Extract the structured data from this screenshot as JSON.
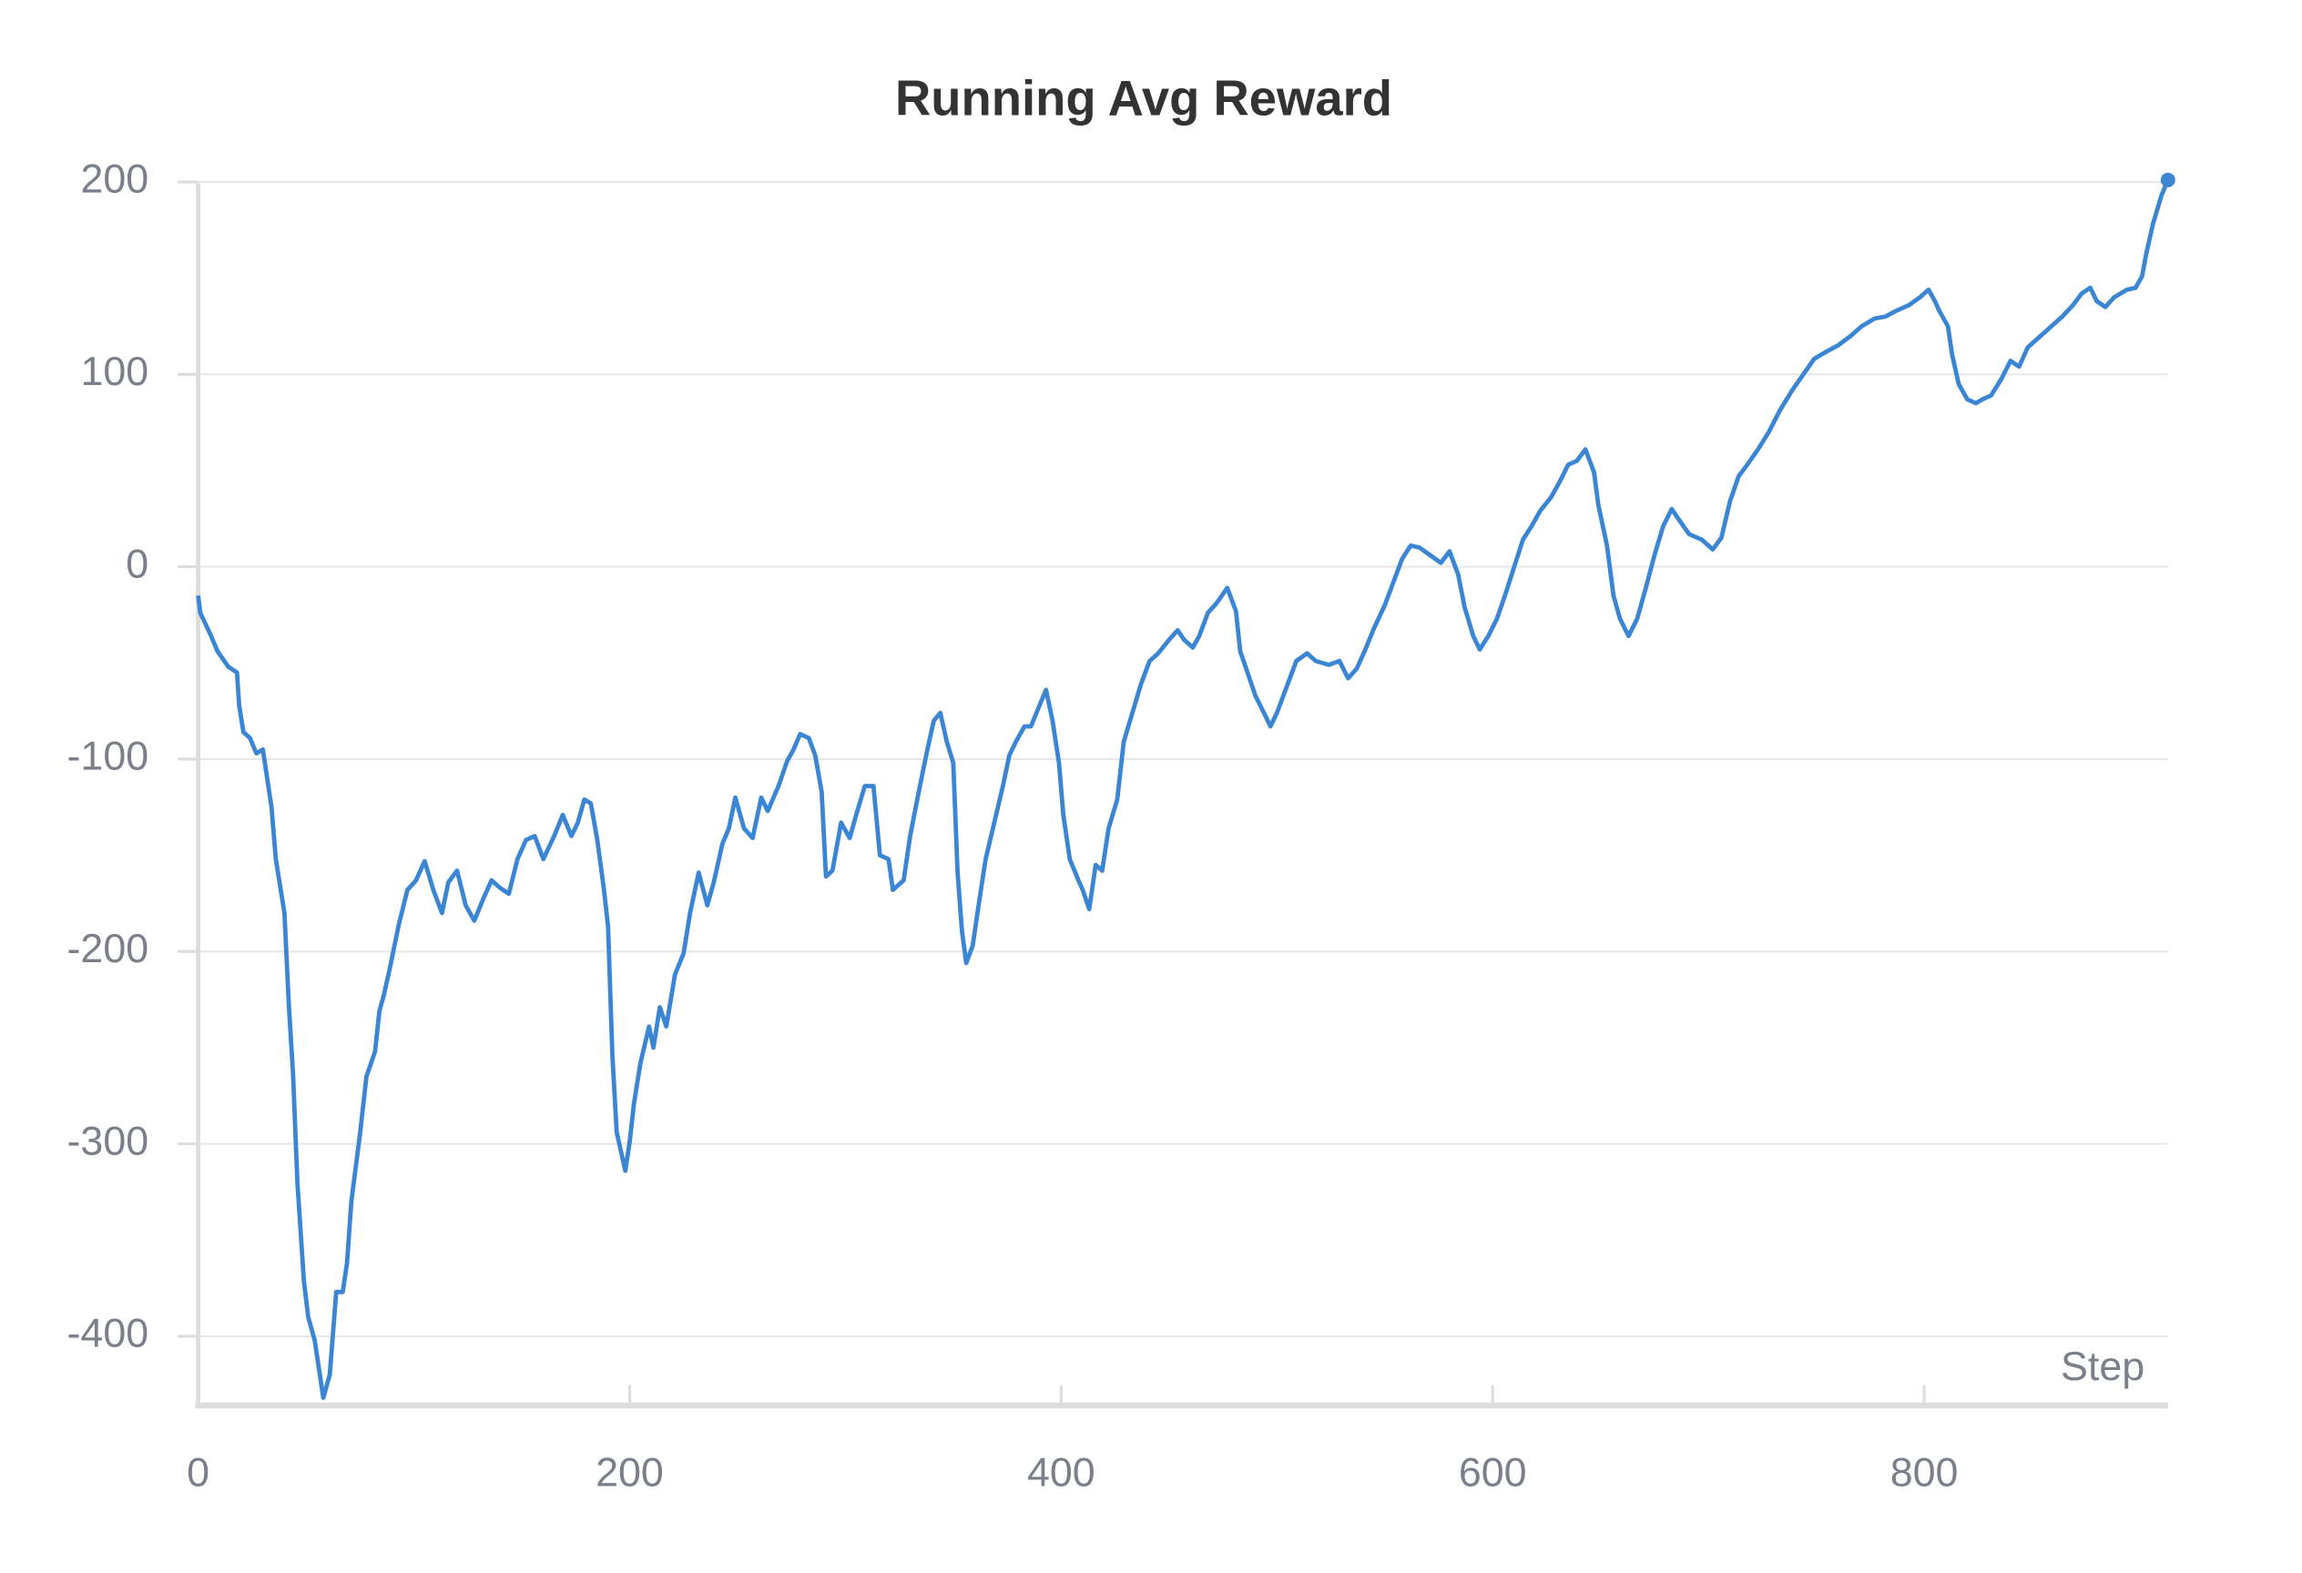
{
  "chart_data": {
    "type": "line",
    "title": "Running Avg Reward",
    "x_label": "Step",
    "x": [
      0,
      1,
      6,
      9,
      14,
      18,
      19,
      21,
      24,
      27,
      30,
      32,
      34,
      36,
      40,
      42,
      44,
      46,
      49,
      51,
      54,
      58,
      61,
      64,
      67,
      69,
      71,
      75,
      78,
      82,
      84,
      86,
      89,
      93,
      97,
      101,
      105,
      109,
      113,
      116,
      120,
      124,
      128,
      132,
      136,
      140,
      144,
      148,
      152,
      156,
      160,
      165,
      169,
      173,
      176,
      179,
      182,
      185,
      188,
      190,
      192,
      194,
      198,
      200,
      202,
      205,
      209,
      211,
      214,
      217,
      221,
      225,
      228,
      232,
      236,
      239,
      243,
      246,
      249,
      253,
      257,
      261,
      264,
      269,
      273,
      276,
      279,
      283,
      286,
      289,
      291,
      294,
      298,
      302,
      305,
      309,
      313,
      316,
      320,
      322,
      327,
      330,
      334,
      338,
      341,
      344,
      347,
      350,
      352,
      354,
      356,
      359,
      362,
      365,
      369,
      373,
      376,
      379,
      383,
      386,
      390,
      393,
      396,
      399,
      401,
      404,
      408,
      410,
      413,
      416,
      419,
      422,
      426,
      429,
      433,
      437,
      441,
      445,
      450,
      454,
      457,
      461,
      464,
      468,
      472,
      477,
      481,
      483,
      487,
      490,
      494,
      497,
      500,
      505,
      509,
      514,
      518,
      524,
      529,
      533,
      537,
      541,
      545,
      550,
      554,
      558,
      562,
      566,
      571,
      576,
      580,
      584,
      587,
      591,
      594,
      598,
      602,
      606,
      610,
      614,
      618,
      622,
      627,
      631,
      635,
      639,
      643,
      647,
      649,
      653,
      656,
      659,
      663,
      667,
      671,
      675,
      679,
      683,
      686,
      691,
      697,
      702,
      706,
      710,
      714,
      718,
      723,
      728,
      733,
      739,
      744,
      749,
      755,
      760,
      766,
      771,
      777,
      782,
      787,
      793,
      798,
      802,
      805,
      807,
      811,
      813,
      816,
      820,
      824,
      827,
      831,
      836,
      840,
      844,
      848,
      853,
      859,
      864,
      869,
      873,
      877,
      880,
      884,
      888,
      894,
      898,
      901,
      903,
      906,
      910,
      913
    ],
    "series": [
      {
        "name": "Running Avg Reward",
        "color": "#3a86d4",
        "values": [
          -15,
          -24,
          -36,
          -44,
          -52,
          -55,
          -72,
          -86,
          -89,
          -97,
          -95,
          -110,
          -125,
          -152,
          -180,
          -227,
          -264,
          -320,
          -371,
          -390,
          -402,
          -432,
          -420,
          -377,
          -377,
          -362,
          -330,
          -295,
          -265,
          -252,
          -231,
          -223,
          -208,
          -186,
          -168,
          -163,
          -153,
          -168,
          -180,
          -164,
          -158,
          -176,
          -184,
          -173,
          -163,
          -167,
          -170,
          -152,
          -142,
          -140,
          -152,
          -140,
          -129,
          -140,
          -133,
          -121,
          -123,
          -142,
          -167,
          -187,
          -254,
          -294,
          -314,
          -299,
          -279,
          -258,
          -239,
          -250,
          -229,
          -239,
          -212,
          -201,
          -180,
          -159,
          -176,
          -164,
          -144,
          -136,
          -120,
          -136,
          -141,
          -120,
          -127,
          -114,
          -101,
          -95,
          -87,
          -89,
          -98,
          -117,
          -161,
          -158,
          -133,
          -141,
          -129,
          -114,
          -114,
          -150,
          -152,
          -168,
          -163,
          -140,
          -117,
          -95,
          -80,
          -76,
          -91,
          -102,
          -159,
          -189,
          -206,
          -197,
          -174,
          -152,
          -133,
          -114,
          -98,
          -91,
          -83,
          -83,
          -72,
          -64,
          -80,
          -102,
          -129,
          -152,
          -163,
          -168,
          -178,
          -155,
          -158,
          -136,
          -121,
          -91,
          -76,
          -61,
          -49,
          -45,
          -38,
          -33,
          -38,
          -42,
          -36,
          -24,
          -19,
          -11,
          -23,
          -44,
          -57,
          -67,
          -76,
          -83,
          -76,
          -61,
          -49,
          -45,
          -49,
          -51,
          -49,
          -58,
          -53,
          -43,
          -32,
          -20,
          -8,
          4,
          11,
          10,
          6,
          2,
          8,
          -4,
          -21,
          -36,
          -43,
          -36,
          -27,
          -14,
          0,
          14,
          21,
          29,
          36,
          44,
          53,
          55,
          61,
          49,
          32,
          11,
          -15,
          -27,
          -36,
          -27,
          -11,
          6,
          21,
          30,
          25,
          17,
          14,
          9,
          15,
          34,
          47,
          53,
          61,
          70,
          81,
          92,
          100,
          108,
          112,
          115,
          120,
          125,
          129,
          130,
          133,
          136,
          140,
          144,
          138,
          133,
          125,
          110,
          95,
          87,
          85,
          87,
          89,
          98,
          107,
          104,
          114,
          119,
          125,
          130,
          136,
          142,
          145,
          138,
          135,
          140,
          144,
          145,
          151,
          163,
          178,
          193,
          201
        ]
      }
    ],
    "xlim": [
      0,
      913
    ],
    "ylim": [
      -436,
      206
    ],
    "xticks": [
      0,
      200,
      400,
      600,
      800
    ],
    "yticks": [
      -400,
      -300,
      -200,
      -100,
      0,
      100,
      200
    ],
    "grid": true
  }
}
